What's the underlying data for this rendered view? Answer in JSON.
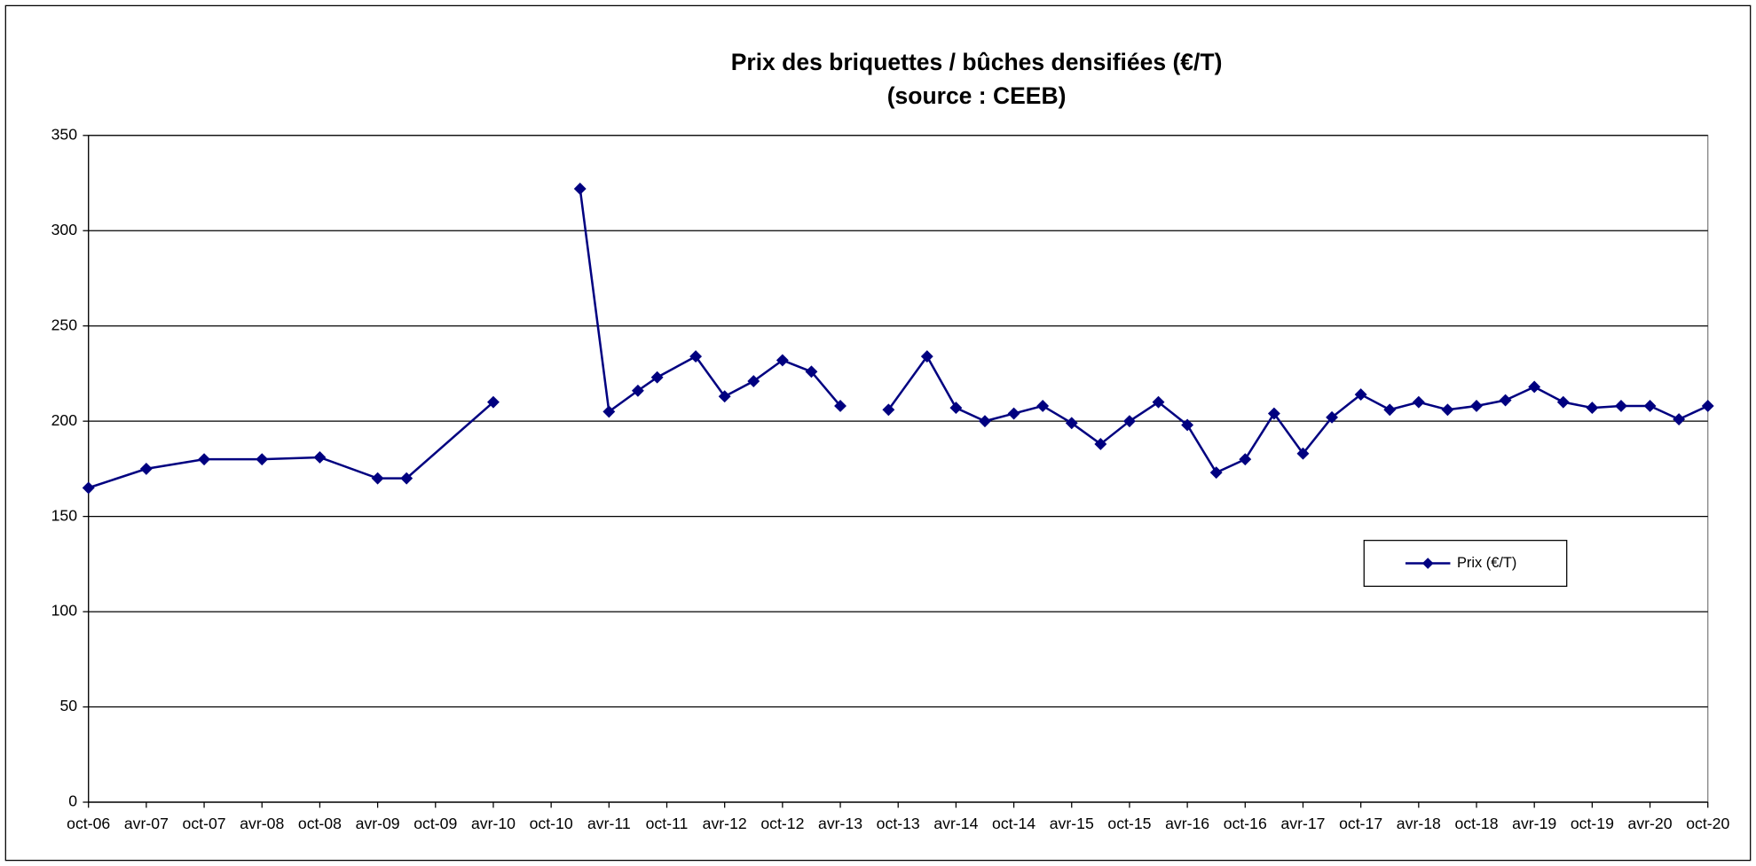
{
  "chart_data": {
    "type": "line",
    "title": "Prix des briquettes / bûches densifiées (€/T)",
    "subtitle": "(source : CEEB)",
    "x": [
      0,
      6,
      12,
      18,
      24,
      30,
      33,
      42,
      null,
      51,
      54,
      57,
      59,
      63,
      66,
      69,
      72,
      75,
      78,
      null,
      83,
      87,
      90,
      93,
      96,
      99,
      102,
      105,
      108,
      111,
      114,
      117,
      120,
      123,
      126,
      129,
      132,
      135,
      138,
      141,
      144,
      147,
      150,
      153,
      156,
      159,
      162,
      165,
      168
    ],
    "series": [
      {
        "name": "Prix (€/T)",
        "color": "#000080",
        "values": [
          165,
          175,
          180,
          180,
          181,
          170,
          170,
          210,
          null,
          322,
          205,
          216,
          223,
          234,
          213,
          221,
          232,
          226,
          208,
          null,
          206,
          234,
          207,
          200,
          204,
          208,
          199,
          188,
          200,
          210,
          198,
          173,
          180,
          204,
          183,
          202,
          214,
          206,
          210,
          206,
          208,
          211,
          218,
          210,
          207,
          208,
          208,
          201,
          208
        ]
      }
    ],
    "xlim": [
      0,
      168
    ],
    "xticks": [
      {
        "value": 0,
        "label": "oct-06"
      },
      {
        "value": 6,
        "label": "avr-07"
      },
      {
        "value": 12,
        "label": "oct-07"
      },
      {
        "value": 18,
        "label": "avr-08"
      },
      {
        "value": 24,
        "label": "oct-08"
      },
      {
        "value": 30,
        "label": "avr-09"
      },
      {
        "value": 36,
        "label": "oct-09"
      },
      {
        "value": 42,
        "label": "avr-10"
      },
      {
        "value": 48,
        "label": "oct-10"
      },
      {
        "value": 54,
        "label": "avr-11"
      },
      {
        "value": 60,
        "label": "oct-11"
      },
      {
        "value": 66,
        "label": "avr-12"
      },
      {
        "value": 72,
        "label": "oct-12"
      },
      {
        "value": 78,
        "label": "avr-13"
      },
      {
        "value": 84,
        "label": "oct-13"
      },
      {
        "value": 90,
        "label": "avr-14"
      },
      {
        "value": 96,
        "label": "oct-14"
      },
      {
        "value": 102,
        "label": "avr-15"
      },
      {
        "value": 108,
        "label": "oct-15"
      },
      {
        "value": 114,
        "label": "avr-16"
      },
      {
        "value": 120,
        "label": "oct-16"
      },
      {
        "value": 126,
        "label": "avr-17"
      },
      {
        "value": 132,
        "label": "oct-17"
      },
      {
        "value": 138,
        "label": "avr-18"
      },
      {
        "value": 144,
        "label": "oct-18"
      },
      {
        "value": 150,
        "label": "avr-19"
      },
      {
        "value": 156,
        "label": "oct-19"
      },
      {
        "value": 162,
        "label": "avr-20"
      },
      {
        "value": 168,
        "label": "oct-20"
      }
    ],
    "ylim": [
      0,
      350
    ],
    "yticks": [
      0,
      50,
      100,
      150,
      200,
      250,
      300,
      350
    ],
    "grid": true,
    "legend": "right"
  }
}
